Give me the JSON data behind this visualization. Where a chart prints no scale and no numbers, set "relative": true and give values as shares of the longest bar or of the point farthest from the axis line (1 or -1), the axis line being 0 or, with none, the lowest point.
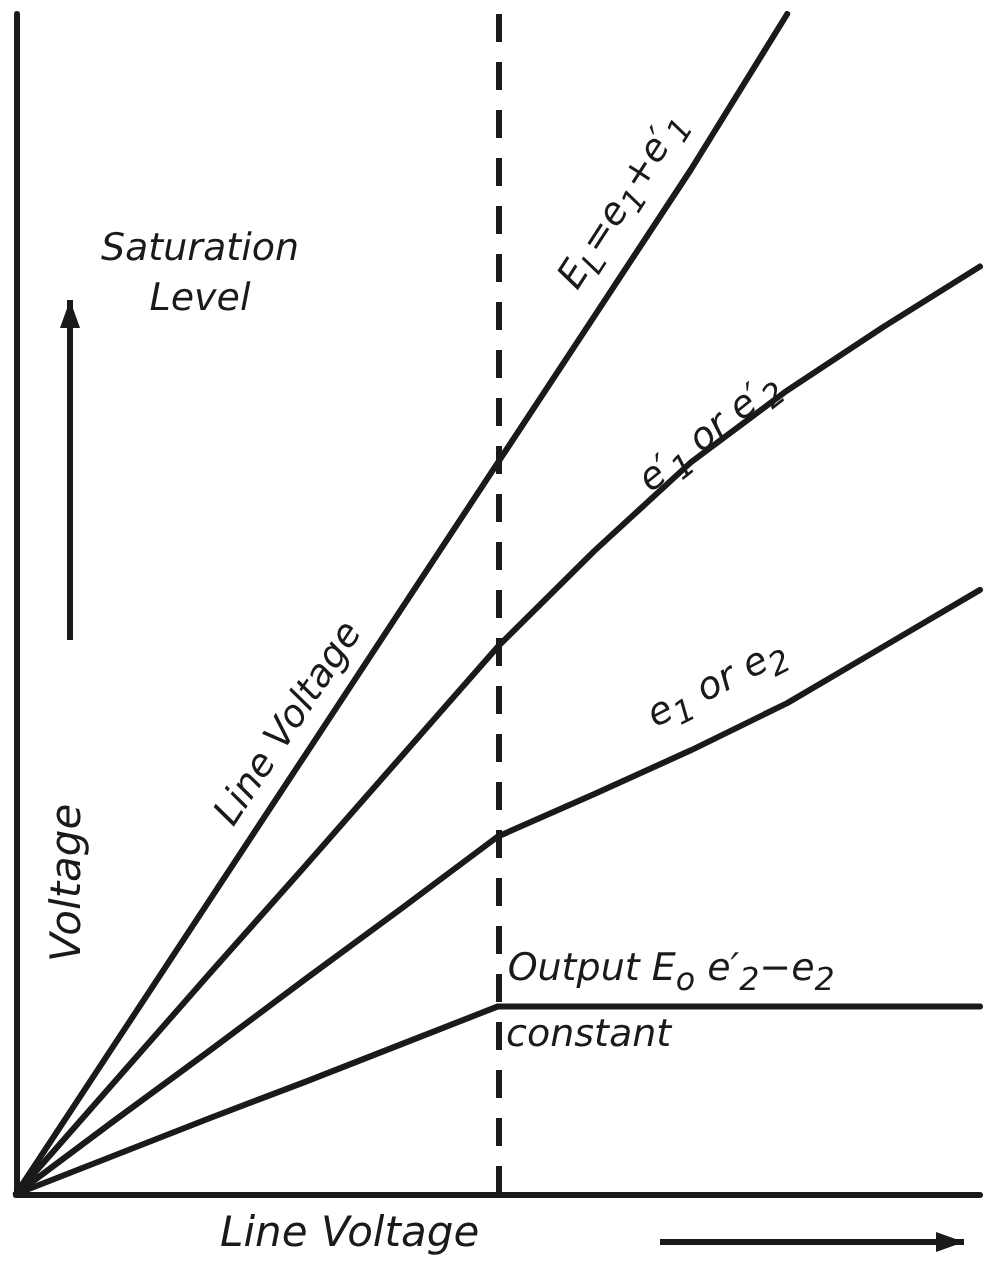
{
  "chart_data": {
    "type": "line",
    "relative": true,
    "xlabel": "Line Voltage",
    "ylabel": "Voltage",
    "line_style": "solid",
    "marker": "none",
    "legend": false,
    "grid": false,
    "categories": [
      null,
      null,
      null,
      null,
      null,
      null,
      null,
      null,
      null,
      null,
      null
    ],
    "series": [
      {
        "name": "E$_{L}$=e$_{1}$+e′$_{1}$",
        "color": "#1a1a1a",
        "values": [
          0,
          0.124,
          0.248,
          0.372,
          0.496,
          0.62,
          0.744,
          0.868,
          1.0,
          null,
          null
        ]
      },
      {
        "name": "e′$_{1}$ or e′$_{2}$",
        "color": "#1a1a1a",
        "values": [
          0,
          0.093,
          0.186,
          0.278,
          0.371,
          0.464,
          0.545,
          0.62,
          0.681,
          0.735,
          0.786
        ]
      },
      {
        "name": "e$_{1}$ or e$_{2}$",
        "color": "#1a1a1a",
        "values": [
          0,
          0.061,
          0.121,
          0.182,
          0.242,
          0.303,
          0.339,
          0.376,
          0.416,
          0.464,
          0.512
        ]
      },
      {
        "name": "Output E$_{o}$ e′$_{2}$−e$_{2}$",
        "color": "#1a1a1a",
        "values": [
          0,
          0.032,
          0.064,
          0.095,
          0.127,
          0.159,
          0.159,
          0.159,
          0.159,
          0.159,
          0.159
        ]
      }
    ],
    "annotations": [
      "Saturation Level",
      "Line Voltage",
      "constant"
    ]
  }
}
